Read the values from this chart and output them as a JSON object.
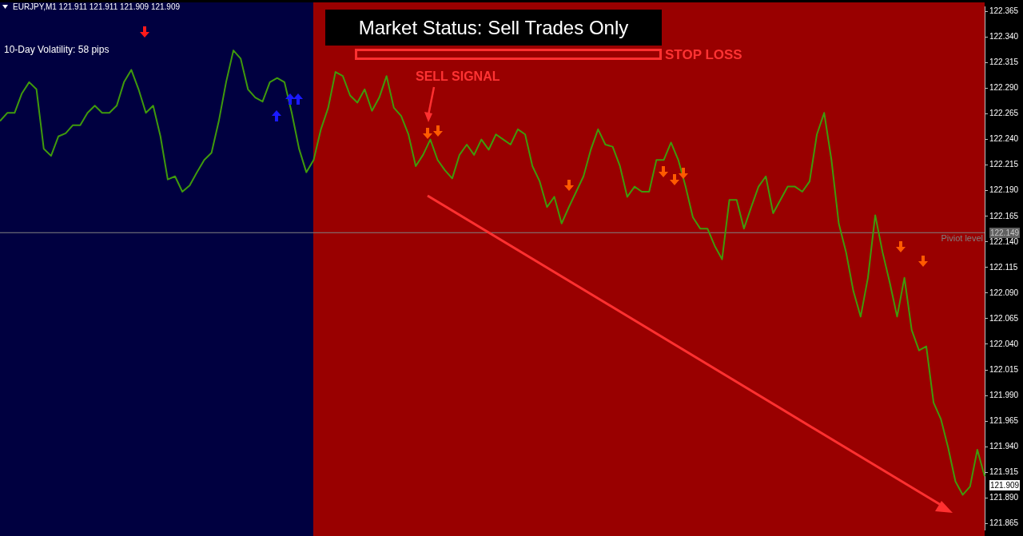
{
  "chart_data": {
    "type": "line",
    "title": "Market Status: Sell Trades Only",
    "subtitle": "EURJPY,M1  121.911 121.911 121.909 121.909",
    "annotations": [
      "10-Day Volatility: 58 pips",
      "SELL SIGNAL",
      "STOP LOSS",
      "122.149",
      "121.909"
    ],
    "categories": [
      null,
      null,
      null,
      null,
      null,
      null,
      null,
      null,
      null,
      null,
      null,
      null,
      null,
      null,
      null,
      null,
      null,
      null,
      null,
      null,
      null,
      null,
      null,
      null,
      null,
      null,
      null,
      null,
      null,
      null,
      null,
      null,
      null,
      null,
      null,
      null,
      null,
      null,
      null,
      null,
      null,
      null,
      null,
      null,
      null,
      null,
      null,
      null,
      null,
      null,
      null,
      null,
      null,
      null,
      null,
      null,
      null,
      null,
      null,
      null,
      null,
      null,
      null,
      null,
      null,
      null,
      null,
      null,
      null,
      null,
      null,
      null,
      null,
      null,
      null,
      null,
      null,
      null,
      null,
      null,
      null,
      null,
      null,
      null,
      null,
      null,
      null,
      null,
      null,
      null,
      null,
      null,
      null,
      null,
      null,
      null,
      null,
      null,
      null,
      null,
      null,
      null,
      null,
      null,
      null,
      null,
      null,
      null,
      null,
      null,
      null,
      null,
      null,
      null,
      null,
      null,
      null,
      null,
      null,
      null,
      null,
      null,
      null,
      null,
      null,
      null,
      null,
      null,
      null,
      null,
      null,
      null,
      null,
      null,
      null,
      null
    ],
    "series": [
      {
        "color": "#3f9a0c",
        "values": [
          122.258,
          122.266,
          122.266,
          122.285,
          122.296,
          122.289,
          122.231,
          122.224,
          122.243,
          122.246,
          122.254,
          122.254,
          122.266,
          122.273,
          122.266,
          122.266,
          122.273,
          122.296,
          122.308,
          122.289,
          122.266,
          122.273,
          122.243,
          122.201,
          122.204,
          122.189,
          122.195,
          122.208,
          122.22,
          122.227,
          122.258,
          122.296,
          122.327,
          122.319,
          122.289,
          122.281,
          122.277,
          122.296,
          122.3,
          122.296,
          122.266,
          122.231,
          122.208,
          122.22,
          122.25,
          122.271,
          122.306,
          122.302,
          122.283,
          122.276,
          122.289,
          122.268,
          122.281,
          122.302,
          122.271,
          122.263,
          122.245,
          122.214,
          122.225,
          122.24,
          122.22,
          122.21,
          122.202,
          122.225,
          122.235,
          122.225,
          122.24,
          122.23,
          122.245,
          122.24,
          122.235,
          122.25,
          122.245,
          122.214,
          122.199,
          122.174,
          122.184,
          122.158,
          122.174,
          122.189,
          122.204,
          122.23,
          122.25,
          122.235,
          122.233,
          122.214,
          122.184,
          122.194,
          122.189,
          122.189,
          122.22,
          122.22,
          122.237,
          122.22,
          122.194,
          122.164,
          122.153,
          122.153,
          122.136,
          122.123,
          122.181,
          122.181,
          122.153,
          122.174,
          122.194,
          122.204,
          122.168,
          122.181,
          122.194,
          122.194,
          122.189,
          122.199,
          122.245,
          122.266,
          122.22,
          122.158,
          122.13,
          122.092,
          122.067,
          122.105,
          122.166,
          122.13,
          122.1,
          122.067,
          122.105,
          122.054,
          122.034,
          122.038,
          121.983,
          121.967,
          121.939,
          121.906,
          121.893,
          121.901,
          121.937,
          121.911
        ]
      }
    ],
    "ylim": [
      121.859,
      122.37
    ],
    "yticks": [
      122.365,
      {
        "value": 122.34,
        "label": "122.340"
      },
      122.315,
      {
        "value": 122.29,
        "label": "122.290"
      },
      122.265,
      {
        "value": 122.24,
        "label": "122.240"
      },
      122.215,
      {
        "value": 122.19,
        "label": "122.190"
      },
      122.165,
      {
        "value": 122.14,
        "label": "122.140"
      },
      122.115,
      {
        "value": 122.09,
        "label": "122.090"
      },
      122.065,
      {
        "value": 122.04,
        "label": "122.040"
      },
      122.015,
      {
        "value": 121.99,
        "label": "121.990"
      },
      121.965,
      {
        "value": 121.94,
        "label": "121.940"
      },
      121.915,
      {
        "value": 121.89,
        "label": "121.890"
      },
      121.865
    ],
    "tick_labels": "y",
    "marker": "none",
    "legend": false,
    "grid": false,
    "ref_lines": [
      {
        "axis": "y",
        "value": 122.149,
        "label": "Piviot level",
        "color": "#808080"
      }
    ]
  }
}
